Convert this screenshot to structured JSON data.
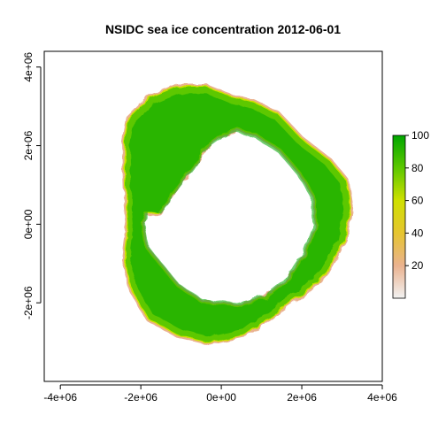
{
  "chart_data": {
    "type": "heatmap",
    "title": "NSIDC sea ice concentration 2012-06-01",
    "xlabel": "",
    "ylabel": "",
    "xlim": [
      -4400000,
      4000000
    ],
    "ylim": [
      -4000000,
      4400000
    ],
    "x_ticks": [
      {
        "value": -4000000,
        "label": "-4e+06"
      },
      {
        "value": -2000000,
        "label": "-2e+06"
      },
      {
        "value": 0,
        "label": "0e+00"
      },
      {
        "value": 2000000,
        "label": "2e+06"
      },
      {
        "value": 4000000,
        "label": "4e+06"
      }
    ],
    "y_ticks": [
      {
        "value": -2000000,
        "label": "-2e+06"
      },
      {
        "value": 0,
        "label": "0e+00"
      },
      {
        "value": 2000000,
        "label": "2e+06"
      },
      {
        "value": 4000000,
        "label": "4e+06"
      }
    ],
    "colorbar": {
      "range": [
        0,
        100
      ],
      "ticks": [
        {
          "value": 20,
          "label": "20"
        },
        {
          "value": 40,
          "label": "40"
        },
        {
          "value": 60,
          "label": "60"
        },
        {
          "value": 80,
          "label": "80"
        },
        {
          "value": 100,
          "label": "100"
        }
      ],
      "colors": [
        "#f2f2f2",
        "#eab28f",
        "#e6c530",
        "#cfe000",
        "#5dc800",
        "#00a600"
      ]
    },
    "ice_ring": {
      "outer_edge": [
        [
          -2400000,
          2100000
        ],
        [
          -2300000,
          2700000
        ],
        [
          -1800000,
          3200000
        ],
        [
          -1100000,
          3500000
        ],
        [
          -400000,
          3500000
        ],
        [
          200000,
          3250000
        ],
        [
          800000,
          3100000
        ],
        [
          1400000,
          2800000
        ],
        [
          2000000,
          2150000
        ],
        [
          2700000,
          1600000
        ],
        [
          3100000,
          1100000
        ],
        [
          3200000,
          400000
        ],
        [
          3050000,
          -400000
        ],
        [
          2600000,
          -1200000
        ],
        [
          2100000,
          -1700000
        ],
        [
          1400000,
          -2200000
        ],
        [
          600000,
          -2800000
        ],
        [
          -300000,
          -3000000
        ],
        [
          -1100000,
          -2800000
        ],
        [
          -1800000,
          -2400000
        ],
        [
          -2200000,
          -1700000
        ],
        [
          -2400000,
          -900000
        ],
        [
          -2300000,
          -100000
        ],
        [
          -2350000,
          500000
        ]
      ],
      "inner_edge": [
        [
          0,
          2300000
        ],
        [
          400000,
          2450000
        ],
        [
          900000,
          2300000
        ],
        [
          1500000,
          1900000
        ],
        [
          2000000,
          1300000
        ],
        [
          2350000,
          700000
        ],
        [
          2400000,
          0
        ],
        [
          2150000,
          -700000
        ],
        [
          1700000,
          -1400000
        ],
        [
          1100000,
          -1900000
        ],
        [
          400000,
          -2100000
        ],
        [
          -500000,
          -2000000
        ],
        [
          -1100000,
          -1600000
        ],
        [
          -1500000,
          -1100000
        ],
        [
          -1900000,
          -600000
        ],
        [
          -2000000,
          0
        ],
        [
          -1900000,
          300000
        ],
        [
          -1600000,
          300000
        ],
        [
          -1300000,
          700000
        ],
        [
          -1000000,
          1100000
        ],
        [
          -700000,
          1500000
        ],
        [
          -400000,
          2000000
        ]
      ]
    }
  }
}
